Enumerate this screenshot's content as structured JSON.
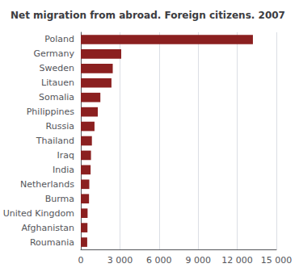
{
  "chart_data": {
    "type": "bar",
    "orientation": "horizontal",
    "title": "Net migration from abroad. Foreign citizens. 2007",
    "categories": [
      "Poland",
      "Germany",
      "Sweden",
      "Litauen",
      "Somalia",
      "Philippines",
      "Russia",
      "Thailand",
      "Iraq",
      "India",
      "Netherlands",
      "Burma",
      "United Kingdom",
      "Afghanistan",
      "Roumania"
    ],
    "values": [
      13200,
      3100,
      2450,
      2350,
      1500,
      1300,
      1050,
      850,
      780,
      750,
      650,
      630,
      520,
      510,
      490
    ],
    "color": "#8B2020",
    "xlim": [
      0,
      15000
    ],
    "xticks": [
      0,
      {
        "value": 3000,
        "label": "3 000"
      },
      {
        "value": 6000,
        "label": "6 000"
      },
      {
        "value": 9000,
        "label": "9 000"
      },
      {
        "value": 12000,
        "label": "12 000"
      },
      {
        "value": 15000,
        "label": "15 000"
      }
    ],
    "grid": true
  }
}
